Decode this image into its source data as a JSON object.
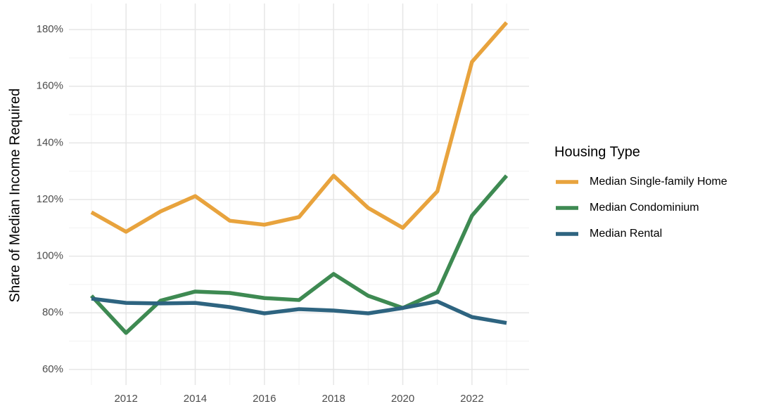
{
  "chart_data": {
    "type": "line",
    "ylabel": "Share of Median Income Required",
    "legend_title": "Housing Type",
    "x": [
      2011,
      2012,
      2013,
      2014,
      2015,
      2016,
      2017,
      2018,
      2019,
      2020,
      2021,
      2022,
      2023
    ],
    "series": [
      {
        "name": "Median Single-family Home",
        "color": "#e8a33d",
        "values": [
          115.5,
          108.6,
          115.8,
          121.2,
          112.5,
          111.1,
          113.8,
          128.4,
          117.0,
          110.0,
          122.9,
          168.6,
          182.5
        ]
      },
      {
        "name": "Median Condominium",
        "color": "#3e8a52",
        "values": [
          86.0,
          72.9,
          84.3,
          87.5,
          87.0,
          85.2,
          84.5,
          93.7,
          86.0,
          81.7,
          87.2,
          114.3,
          128.4
        ]
      },
      {
        "name": "Median Rental",
        "color": "#2e6480",
        "values": [
          85.0,
          83.5,
          83.3,
          83.5,
          82.0,
          79.8,
          81.3,
          80.8,
          79.8,
          81.7,
          84.0,
          78.5,
          76.4
        ]
      }
    ],
    "xlim": [
      2010.35,
      2023.65
    ],
    "xticks": [
      2012,
      2014,
      2016,
      2018,
      2020,
      2022
    ],
    "ylim": [
      54.5,
      189.2
    ],
    "yticks": [
      {
        "value": 60,
        "label": "60%"
      },
      {
        "value": 80,
        "label": "80%"
      },
      {
        "value": 100,
        "label": "100%"
      },
      {
        "value": 120,
        "label": "120%"
      },
      {
        "value": 140,
        "label": "140%"
      },
      {
        "value": 160,
        "label": "160%"
      },
      {
        "value": 180,
        "label": "180%"
      }
    ],
    "grid": true,
    "minor_grid": true,
    "legend": "right"
  }
}
